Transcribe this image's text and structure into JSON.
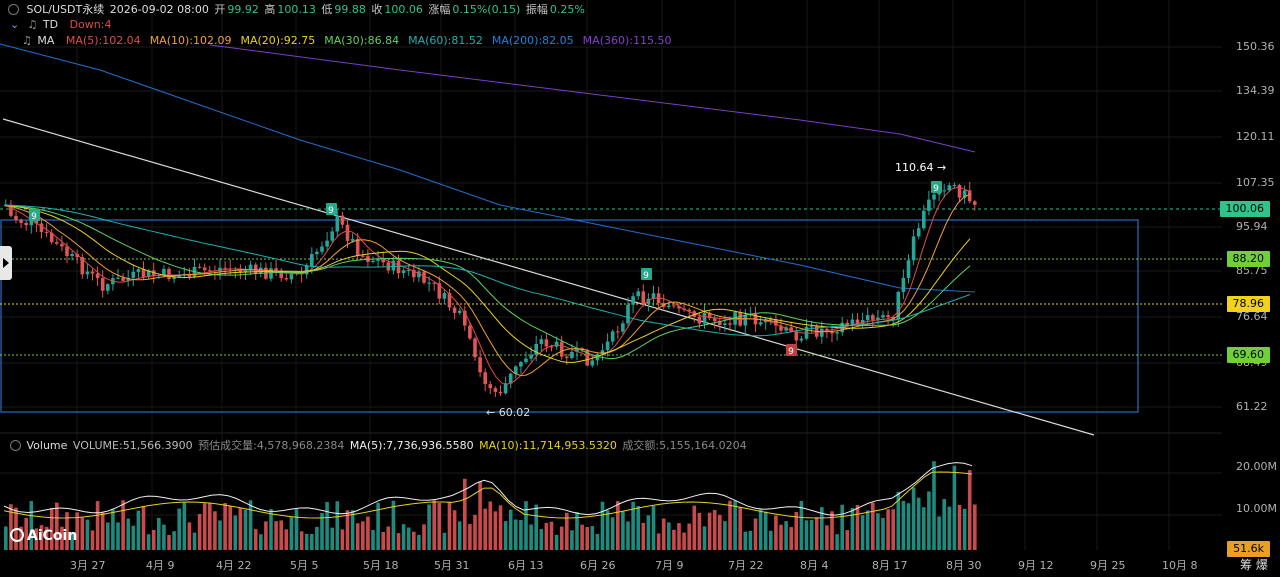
{
  "header": {
    "symbol": "SOL/USDT永续",
    "datetime": "2026-09-02 08:00",
    "open_label": "开",
    "open": "99.92",
    "high_label": "高",
    "high": "100.13",
    "low_label": "低",
    "low": "99.88",
    "close_label": "收",
    "close": "100.06",
    "change_label": "涨幅",
    "change": "0.15%(0.15)",
    "amp_label": "振幅",
    "amp": "0.25%"
  },
  "td": {
    "label": "TD",
    "value": "Down:4"
  },
  "ma": {
    "label": "MA",
    "items": [
      {
        "text": "MA(5):102.04",
        "color": "#e04a4a"
      },
      {
        "text": "MA(10):102.09",
        "color": "#f0a030"
      },
      {
        "text": "MA(20):92.75",
        "color": "#e8d020"
      },
      {
        "text": "MA(30):86.84",
        "color": "#5fd05f"
      },
      {
        "text": "MA(60):81.52",
        "color": "#1fb0b0"
      },
      {
        "text": "MA(200):82.05",
        "color": "#2080e0"
      },
      {
        "text": "MA(360):115.50",
        "color": "#8040d0"
      }
    ]
  },
  "price_axis": [
    "150.36",
    "134.39",
    "120.11",
    "107.35",
    "95.94",
    "85.75",
    "76.64",
    "68.49",
    "61.22"
  ],
  "price_markers": [
    {
      "value": "100.06",
      "color": "#2ec48a"
    },
    {
      "value": "88.20",
      "color": "#6ed13a"
    },
    {
      "value": "78.96",
      "color": "#f2d21c"
    },
    {
      "value": "69.60",
      "color": "#6ed13a"
    }
  ],
  "annotations": {
    "high": "110.64",
    "low": "60.02",
    "td_nine": "9"
  },
  "volume": {
    "label": "Volume",
    "value": "VOLUME:51,566.3900",
    "estimate": "预估成交量:4,578,968.2384",
    "ma5": "MA(5):7,736,936.5580",
    "ma10": "MA(10):11,714,953.5320",
    "turnover": "成交额:5,155,164.0204",
    "axis": [
      "20.00M",
      "10.00M"
    ],
    "current": "51.6k"
  },
  "dates": [
    "3月 27",
    "4月 9",
    "4月 22",
    "5月 5",
    "5月 18",
    "5月 31",
    "6月 13",
    "6月 26",
    "7月 9",
    "7月 22",
    "8月 4",
    "8月 17",
    "8月 30",
    "9月 12",
    "9月 25",
    "10月 8"
  ],
  "footer_right": "筹 爆",
  "logo": "AiCoin",
  "colors": {
    "up": "#26a69a",
    "down": "#e05555",
    "bg": "#000000"
  }
}
